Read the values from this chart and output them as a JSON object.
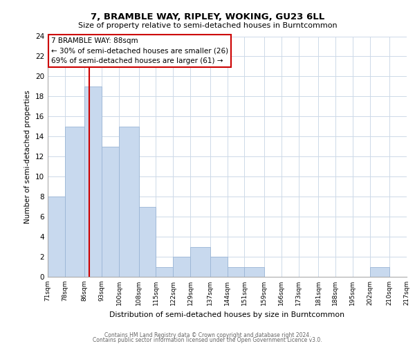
{
  "title": "7, BRAMBLE WAY, RIPLEY, WOKING, GU23 6LL",
  "subtitle": "Size of property relative to semi-detached houses in Burntcommon",
  "bin_edges": [
    71,
    78,
    86,
    93,
    100,
    108,
    115,
    122,
    129,
    137,
    144,
    151,
    159,
    166,
    173,
    181,
    188,
    195,
    202,
    210,
    217
  ],
  "bar_heights": [
    8,
    15,
    19,
    13,
    15,
    7,
    1,
    2,
    3,
    2,
    1,
    1,
    0,
    0,
    0,
    0,
    0,
    0,
    1,
    0
  ],
  "bar_color": "#c8d9ee",
  "bar_edgecolor": "#9ab5d5",
  "property_size": 88,
  "vline_color": "#cc0000",
  "annotation_title": "7 BRAMBLE WAY: 88sqm",
  "annotation_line1": "← 30% of semi-detached houses are smaller (26)",
  "annotation_line2": "69% of semi-detached houses are larger (61) →",
  "xlabel": "Distribution of semi-detached houses by size in Burntcommon",
  "ylabel": "Number of semi-detached properties",
  "ylim": [
    0,
    24
  ],
  "yticks": [
    0,
    2,
    4,
    6,
    8,
    10,
    12,
    14,
    16,
    18,
    20,
    22,
    24
  ],
  "tick_labels": [
    "71sqm",
    "78sqm",
    "86sqm",
    "93sqm",
    "100sqm",
    "108sqm",
    "115sqm",
    "122sqm",
    "129sqm",
    "137sqm",
    "144sqm",
    "151sqm",
    "159sqm",
    "166sqm",
    "173sqm",
    "181sqm",
    "188sqm",
    "195sqm",
    "202sqm",
    "210sqm",
    "217sqm"
  ],
  "footer1": "Contains HM Land Registry data © Crown copyright and database right 2024.",
  "footer2": "Contains public sector information licensed under the Open Government Licence v3.0.",
  "background_color": "#ffffff",
  "grid_color": "#cdd9e8"
}
